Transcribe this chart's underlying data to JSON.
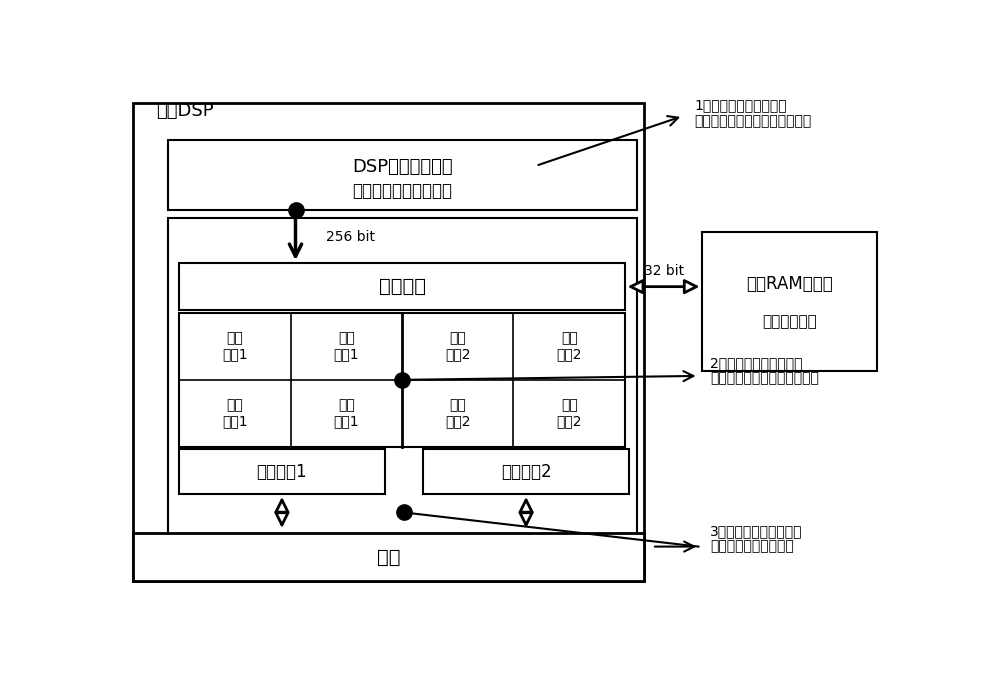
{
  "bg_color": "#ffffff",
  "title": "单核DSP",
  "dsp_cache_line1": "DSP内部程序缓存",
  "dsp_cache_line2": "（运行关键复杂算法）",
  "prefetch_label": "指令预取",
  "ram_line1": "外部RAM存储器",
  "ram_line2": "（其他程序）",
  "reg1_label": "寄存器组1",
  "reg2_label": "寄存器组2",
  "data_label": "数据",
  "bit256": "256 bit",
  "bit32": "32 bit",
  "cell_labels_row0": [
    "访存\n单元1",
    "逻辑\n运算1",
    "访存\n单元2",
    "逻辑\n运算2"
  ],
  "cell_labels_row1": [
    "乘法\n运算1",
    "其他\n功能1",
    "乘法\n运算2",
    "其他\n功能2"
  ],
  "ann1": "1、提高存储访问并行度",
  "ann1b": "（关键复杂算法定址编译运行）",
  "ann2": "2、提高指令执行并行度",
  "ann2b": "（循环展开、分支结构改进）",
  "ann3": "3、提高数据处理并行度",
  "ann3b": "（单指令多数据指令）"
}
